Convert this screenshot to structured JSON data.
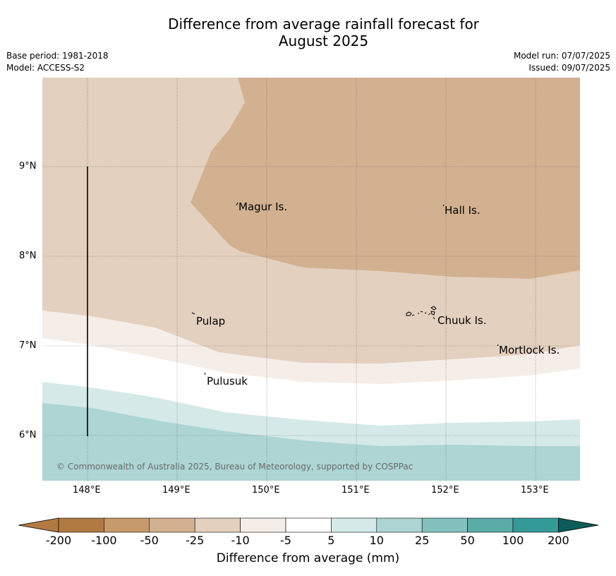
{
  "title_line1": "Difference from average rainfall forecast for",
  "title_line2": "August 2025",
  "base_period": "Base period: 1981-2018",
  "model": "Model: ACCESS-S2",
  "model_run": "Model run: 07/07/2025",
  "issued": "Issued: 09/07/2025",
  "lat_labels": [
    "9°N",
    "8°N",
    "7°N",
    "6°N"
  ],
  "lon_labels": [
    "148°E",
    "149°E",
    "150°E",
    "151°E",
    "152°E",
    "153°E"
  ],
  "places": [
    "Magur Is.",
    "Hall Is.",
    "Pulap",
    "Chuuk Is.",
    "Mortlock Is.",
    "Pulusuk"
  ],
  "copyright": "© Commonwealth of Australia 2025, Bureau of Meteorology, supported by COSPPac",
  "colorbar": {
    "ticks": [
      "-200",
      "-100",
      "-50",
      "-25",
      "-10",
      "-5",
      "5",
      "10",
      "25",
      "50",
      "100",
      "200"
    ],
    "colors": [
      "#b07a42",
      "#c69a6c",
      "#d2b191",
      "#e3d0bf",
      "#f5ede8",
      "#ffffff",
      "#d5e9e8",
      "#acd5d4",
      "#84c1be",
      "#5aaca9",
      "#339a97",
      "#0e5c5a"
    ],
    "label": "Difference from average (mm)"
  },
  "zones": {
    "dry_strong": "#d2b191",
    "dry_moderate": "#e3d0bf",
    "dry_slight": "#f5ede8",
    "neutral": "#ffffff",
    "wet_slight": "#d5e9e8",
    "wet_moderate": "#acd5d4"
  }
}
